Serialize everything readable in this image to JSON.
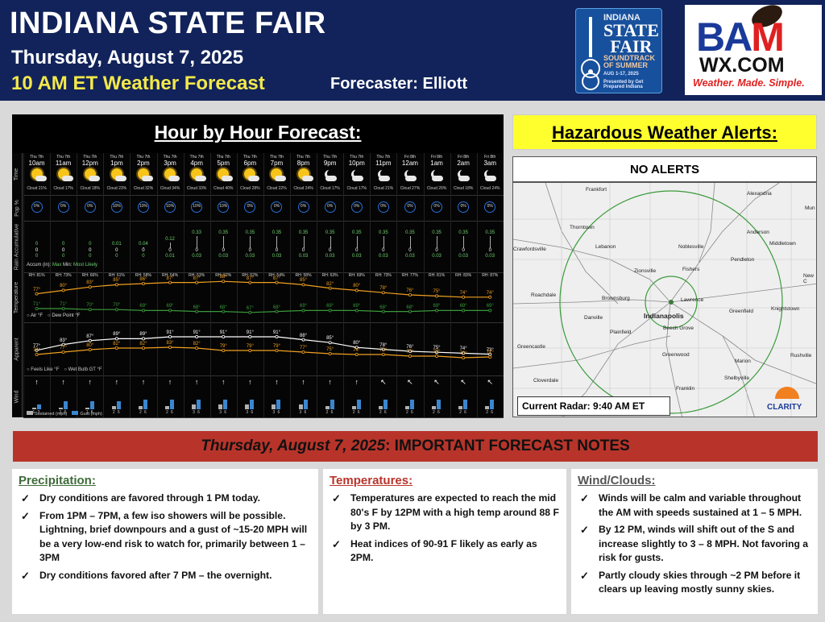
{
  "header": {
    "title": "INDIANA STATE FAIR",
    "date": "Thursday, August 7, 2025",
    "subtitle": "10 AM ET Weather Forecast",
    "forecaster": "Forecaster: Elliott"
  },
  "fair_logo": {
    "line1": "INDIANA",
    "line2": "STATE",
    "line3": "FAIR",
    "tagline": "SOUNDTRACK OF SUMMER",
    "dates": "AUG 1-17, 2025",
    "sponsor": "Presented by Get Prepared Indiana"
  },
  "bam_logo": {
    "brand": "BAM",
    "site": "WX.COM",
    "tagline": "Weather. Made. Simple."
  },
  "hourly": {
    "title": "Hour by Hour Forecast:",
    "row_labels": {
      "time": "Time",
      "pop": "Pop %",
      "rain": "Rain Accumulative",
      "temp": "Temperature",
      "apparent": "Apparent",
      "wind": "Wind"
    },
    "hours": [
      {
        "day": "Thu 7th",
        "hour": "10am",
        "sky": "sun",
        "cloud": "Cloud 21%",
        "pop": "0%",
        "max": "0",
        "min": "0",
        "likely": "0",
        "rh": "RH: 81%",
        "temp": "77°",
        "dew": "71°",
        "feels": "77°",
        "wetbulb": "74°",
        "arrow": "↑",
        "sus": "1",
        "gust": "3"
      },
      {
        "day": "Thu 7th",
        "hour": "11am",
        "sky": "sun",
        "cloud": "Cloud 17%",
        "pop": "0%",
        "max": "0",
        "min": "0",
        "likely": "0",
        "rh": "RH: 73%",
        "temp": "80°",
        "dew": "71°",
        "feels": "83°",
        "wetbulb": "77°",
        "arrow": "↑",
        "sus": "1",
        "gust": "5"
      },
      {
        "day": "Thu 7th",
        "hour": "12pm",
        "sky": "sun",
        "cloud": "Cloud 18%",
        "pop": "0%",
        "max": "0",
        "min": "0",
        "likely": "0",
        "rh": "RH: 66%",
        "temp": "83°",
        "dew": "70°",
        "feels": "87°",
        "wetbulb": "80°",
        "arrow": "↑",
        "sus": "1",
        "gust": "5"
      },
      {
        "day": "Thu 7th",
        "hour": "1pm",
        "sky": "sun",
        "cloud": "Cloud 23%",
        "pop": "10%",
        "max": "0.01",
        "min": "0",
        "likely": "0",
        "rh": "RH: 61%",
        "temp": "85°",
        "dew": "70°",
        "feels": "89°",
        "wetbulb": "82°",
        "arrow": "↑",
        "sus": "2",
        "gust": "5"
      },
      {
        "day": "Thu 7th",
        "hour": "2pm",
        "sky": "sun",
        "cloud": "Cloud 32%",
        "pop": "10%",
        "max": "0.04",
        "min": "0",
        "likely": "0",
        "rh": "RH: 58%",
        "temp": "86°",
        "dew": "69°",
        "feels": "89°",
        "wetbulb": "82°",
        "arrow": "↑",
        "sus": "2",
        "gust": "6"
      },
      {
        "day": "Thu 7th",
        "hour": "3pm",
        "sky": "sun",
        "cloud": "Cloud 34%",
        "pop": "10%",
        "max": "0.12",
        "min": "0",
        "likely": "0.01",
        "rh": "RH: 54%",
        "temp": "87°",
        "dew": "69°",
        "feels": "91°",
        "wetbulb": "83°",
        "arrow": "↑",
        "sus": "2",
        "gust": "6"
      },
      {
        "day": "Thu 7th",
        "hour": "4pm",
        "sky": "sun",
        "cloud": "Cloud 33%",
        "pop": "10%",
        "max": "0.33",
        "min": "0",
        "likely": "0.03",
        "rh": "RH: 53%",
        "temp": "87°",
        "dew": "68°",
        "feels": "91°",
        "wetbulb": "82°",
        "arrow": "↑",
        "sus": "3",
        "gust": "6"
      },
      {
        "day": "Thu 7th",
        "hour": "5pm",
        "sky": "sun",
        "cloud": "Cloud 40%",
        "pop": "10%",
        "max": "0.35",
        "min": "0",
        "likely": "0.03",
        "rh": "RH: 52%",
        "temp": "88°",
        "dew": "68°",
        "feels": "91°",
        "wetbulb": "79°",
        "arrow": "↑",
        "sus": "3",
        "gust": "6"
      },
      {
        "day": "Thu 7th",
        "hour": "6pm",
        "sky": "sun",
        "cloud": "Cloud 28%",
        "pop": "0%",
        "max": "0.35",
        "min": "0",
        "likely": "0.03",
        "rh": "RH: 52%",
        "temp": "87°",
        "dew": "67°",
        "feels": "91°",
        "wetbulb": "79°",
        "arrow": "↑",
        "sus": "3",
        "gust": "6"
      },
      {
        "day": "Thu 7th",
        "hour": "7pm",
        "sky": "sun",
        "cloud": "Cloud 22%",
        "pop": "0%",
        "max": "0.35",
        "min": "0",
        "likely": "0.03",
        "rh": "RH: 54%",
        "temp": "87°",
        "dew": "68°",
        "feels": "91°",
        "wetbulb": "79°",
        "arrow": "↑",
        "sus": "3",
        "gust": "6"
      },
      {
        "day": "Thu 7th",
        "hour": "8pm",
        "sky": "sun",
        "cloud": "Cloud 24%",
        "pop": "0%",
        "max": "0.35",
        "min": "0",
        "likely": "0.03",
        "rh": "RH: 58%",
        "temp": "85°",
        "dew": "69°",
        "feels": "88°",
        "wetbulb": "77°",
        "arrow": "↑",
        "sus": "3",
        "gust": "6"
      },
      {
        "day": "Thu 7th",
        "hour": "9pm",
        "sky": "moon",
        "cloud": "Cloud 17%",
        "pop": "0%",
        "max": "0.35",
        "min": "0",
        "likely": "0.03",
        "rh": "RH: 63%",
        "temp": "82°",
        "dew": "69°",
        "feels": "85°",
        "wetbulb": "75°",
        "arrow": "↑",
        "sus": "2",
        "gust": "6"
      },
      {
        "day": "Thu 7th",
        "hour": "10pm",
        "sky": "moon",
        "cloud": "Cloud 17%",
        "pop": "0%",
        "max": "0.35",
        "min": "0",
        "likely": "0.03",
        "rh": "RH: 69%",
        "temp": "80°",
        "dew": "69°",
        "feels": "80°",
        "wetbulb": "74°",
        "arrow": "↑",
        "sus": "2",
        "gust": "6"
      },
      {
        "day": "Thu 7th",
        "hour": "11pm",
        "sky": "moon",
        "cloud": "Cloud 21%",
        "pop": "0%",
        "max": "0.35",
        "min": "0",
        "likely": "0.03",
        "rh": "RH: 73%",
        "temp": "78°",
        "dew": "68°",
        "feels": "78°",
        "wetbulb": "74°",
        "arrow": "↖",
        "sus": "2",
        "gust": "6"
      },
      {
        "day": "Fri 8th",
        "hour": "12am",
        "sky": "moon",
        "cloud": "Cloud 27%",
        "pop": "0%",
        "max": "0.35",
        "min": "0",
        "likely": "0.03",
        "rh": "RH: 77%",
        "temp": "76°",
        "dew": "68°",
        "feels": "76°",
        "wetbulb": "72°",
        "arrow": "↖",
        "sus": "2",
        "gust": "6"
      },
      {
        "day": "Fri 8th",
        "hour": "1am",
        "sky": "moon",
        "cloud": "Cloud 29%",
        "pop": "0%",
        "max": "0.35",
        "min": "0",
        "likely": "0.03",
        "rh": "RH: 81%",
        "temp": "75°",
        "dew": "69°",
        "feels": "75°",
        "wetbulb": "72°",
        "arrow": "↖",
        "sus": "2",
        "gust": "6"
      },
      {
        "day": "Fri 8th",
        "hour": "2am",
        "sky": "moon",
        "cloud": "Cloud 18%",
        "pop": "0%",
        "max": "0.35",
        "min": "0",
        "likely": "0.03",
        "rh": "RH: 83%",
        "temp": "74°",
        "dew": "69°",
        "feels": "74°",
        "wetbulb": "70°",
        "arrow": "↖",
        "sus": "2",
        "gust": "6"
      },
      {
        "day": "Fri 8th",
        "hour": "3am",
        "sky": "moon",
        "cloud": "Cloud 24%",
        "pop": "0%",
        "max": "0.35",
        "min": "0",
        "likely": "0.03",
        "rh": "RH: 87%",
        "temp": "74°",
        "dew": "69°",
        "feels": "73°",
        "wetbulb": "71°",
        "arrow": "↖",
        "sus": "2",
        "gust": "6"
      }
    ],
    "rain_legend": "Accum (in): Max Min Most Likely",
    "rain_legend_parts": [
      "Accum (in):",
      "Max",
      "Min:",
      "Most Likely"
    ],
    "temp_legend": [
      "Air °F",
      "Dew Point °F"
    ],
    "apparent_legend": [
      "Feels Like °F",
      "Wet Bulb GT °F"
    ],
    "wind_legend": [
      "Sustained (mph)",
      "Gust (mph)"
    ]
  },
  "hazard": {
    "title": "Hazardous Weather Alerts:",
    "status": "NO ALERTS",
    "radar_caption": "Current Radar: 9:40 AM ET",
    "radar_brand": "CLARITY",
    "towns": [
      "Frankfort",
      "Alexandria",
      "Thorntown",
      "Lebanon",
      "Noblesville",
      "Anderson",
      "Middletown",
      "Crawfordsville",
      "Zionsville",
      "Fishers",
      "Pendleton",
      "New C",
      "Roachdale",
      "Brownsburg",
      "Lawrence",
      "Greenfield",
      "Knightstown",
      "Danville",
      "Indianapolis",
      "Plainfield",
      "Beech Grove",
      "Greencastle",
      "Greenwood",
      "Marion",
      "Rushville",
      "Shelbyville",
      "Cloverdale",
      "Franklin",
      "Mun"
    ]
  },
  "notes": {
    "header_italic": "Thursday, August 7, 2025",
    "header_rest": ": IMPORTANT FORECAST NOTES",
    "precip": {
      "title": "Precipitation:",
      "items": [
        "Dry conditions are favored through 1 PM today.",
        "From 1PM – 7PM, a few iso showers will be possible. Lightning, brief downpours and a gust of ~15-20 MPH will be a very low-end risk to watch for, primarily between 1 – 3PM",
        "Dry conditions favored after 7 PM – the overnight."
      ]
    },
    "temps": {
      "title": "Temperatures:",
      "items": [
        "Temperatures are expected to reach the mid 80's F by 12PM with a high temp around 88 F by 3 PM.",
        " Heat indices of 90-91 F likely as early as 2PM."
      ]
    },
    "wind": {
      "title": "Wind/Clouds:",
      "items": [
        "Winds will be calm and variable throughout the AM with speeds sustained at 1 – 5 MPH.",
        "By 12 PM, winds will shift out of the S and increase slightly to 3 – 8 MPH. Not favoring a risk for gusts.",
        "Partly cloudy skies through ~2 PM before it clears up leaving mostly sunny skies."
      ]
    },
    "check": "✓"
  },
  "colors": {
    "header_bg": "#11235a",
    "yellow": "#f3e84a",
    "alert_bg": "#ffff2e",
    "notes_hdr": "#b8342a",
    "temp_line": "#f0a020",
    "dew_line": "#3a9a3a",
    "gust_bar": "#3a86d0",
    "sus_bar": "#b0b0b0",
    "pop_ring": "#2a6fd6"
  }
}
